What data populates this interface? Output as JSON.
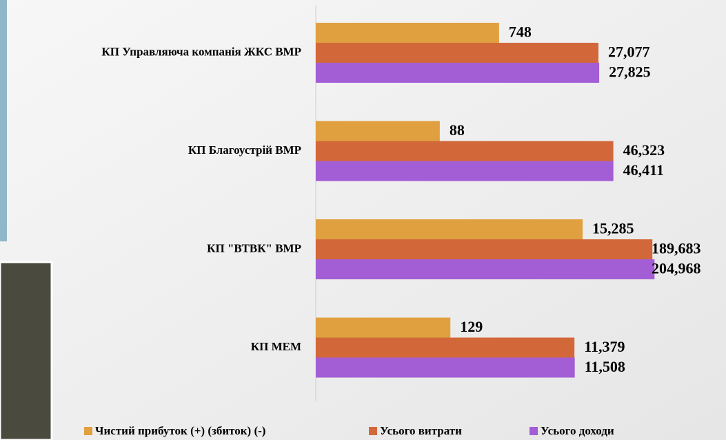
{
  "chart_data": {
    "type": "bar",
    "orientation": "horizontal",
    "log_scale": true,
    "categories": [
      "КП Управляюча компанія ЖКС ВМР",
      "КП Благоустрій ВМР",
      "КП \"ВТВК\" ВМР",
      "КП МЕМ"
    ],
    "series": [
      {
        "name": "Чистий прибуток (+) (збиток) (-)",
        "color": "#e0a040",
        "values": [
          748,
          88,
          15285,
          129
        ],
        "value_labels": [
          "748",
          "88",
          "15,285",
          "129"
        ]
      },
      {
        "name": "Усього витрати",
        "color": "#d2683a",
        "values": [
          27077,
          46323,
          189683,
          11379
        ],
        "value_labels": [
          "27,077",
          "46,323",
          "189,683",
          "11,379"
        ]
      },
      {
        "name": "Усього доходи",
        "color": "#a35ed6",
        "values": [
          27825,
          46411,
          204968,
          11508
        ],
        "value_labels": [
          "27,825",
          "46,411",
          "204,968",
          "11,508"
        ]
      }
    ],
    "xlim": [
      1,
      1000000
    ],
    "legend": "bottom"
  }
}
